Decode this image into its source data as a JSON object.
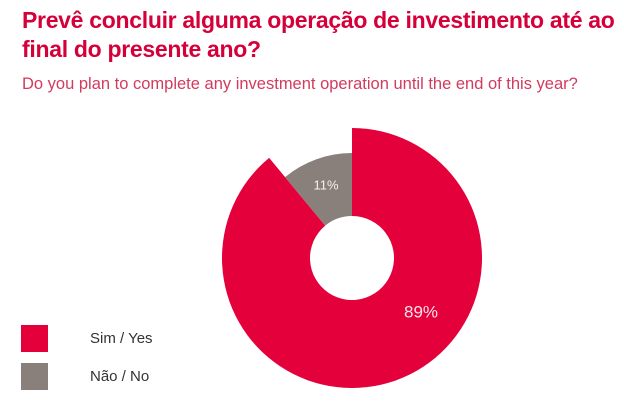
{
  "chart_data": {
    "type": "pie",
    "style": "donut",
    "title": "Prevê concluir alguma operação de investimento até ao final do presente ano?",
    "subtitle": "Do you plan to complete any investment operation until the end of this year?",
    "categories": [
      "Sim / Yes",
      "Não / No"
    ],
    "values": [
      89,
      11
    ],
    "data_labels": [
      "89%",
      "11%"
    ],
    "colors": [
      "#e4003a",
      "#8a807b"
    ],
    "legend_position": "bottom-left"
  }
}
